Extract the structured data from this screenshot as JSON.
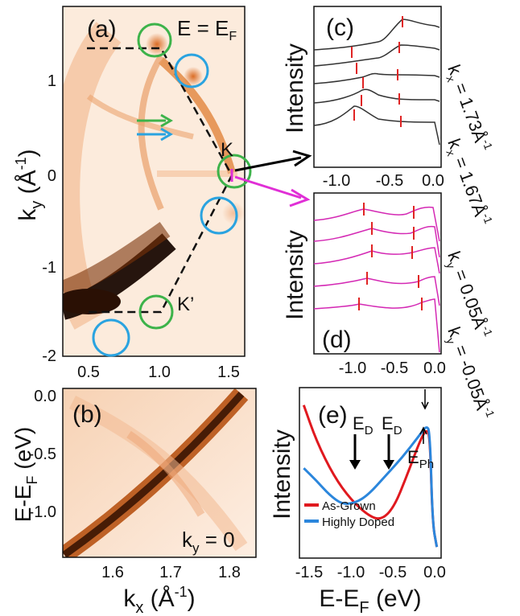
{
  "panel_a": {
    "label": "(a)",
    "energy_label": "E = E",
    "energy_sub": "F",
    "k_label": "K",
    "kprime_label": "K’",
    "xticks": [
      "0.5",
      "1.0",
      "1.5"
    ],
    "yticks": [
      "1",
      "0",
      "-1",
      "-2"
    ],
    "ylabel_main": "k",
    "ylabel_sub": "y",
    "ylabel_unit": " (Å",
    "ylabel_exp": "-1",
    "ylabel_close": ")"
  },
  "panel_b": {
    "label": "(b)",
    "ky_label": "k",
    "ky_sub": "y",
    "ky_value": " = 0",
    "xticks": [
      "1.6",
      "1.7",
      "1.8"
    ],
    "yticks": [
      "0.0",
      "-0.5",
      "-1.0"
    ],
    "xlabel_main": "k",
    "xlabel_sub": "x",
    "xlabel_unit": " (Å",
    "xlabel_exp": "-1",
    "xlabel_close": ")",
    "ylabel_main": "E-E",
    "ylabel_sub": "F",
    "ylabel_unit": " (eV)"
  },
  "panel_c": {
    "label": "(c)",
    "ylabel": "Intensity",
    "xticks": [
      "-1.0",
      "-0.5",
      "0.0"
    ],
    "kx_top": "k",
    "kx_top_sub": "x",
    "kx_top_value": " = 1.73Å",
    "kx_top_exp": "-1",
    "kx_bot": "k",
    "kx_bot_sub": "x",
    "kx_bot_value": " = 1.67Å",
    "kx_bot_exp": "-1"
  },
  "panel_d": {
    "label": "(d)",
    "ylabel": "Intensity",
    "xticks": [
      "-1.0",
      "-0.5",
      "0.0"
    ],
    "ky_top": "k",
    "ky_top_sub": "y",
    "ky_top_value": " = 0.05Å",
    "ky_top_exp": "-1",
    "ky_bot": "k",
    "ky_bot_sub": "y",
    "ky_bot_value": " = -0.05Å",
    "ky_bot_exp": "-1"
  },
  "panel_e": {
    "label": "(e)",
    "ylabel": "Intensity",
    "ed_label": "E",
    "ed_sub": "D",
    "eph_label": "E",
    "eph_sub": "Ph",
    "xticks": [
      "-1.5",
      "-1.0",
      "-0.5",
      "0.0"
    ],
    "xlabel_main": "E-E",
    "xlabel_sub": "F",
    "xlabel_unit": " (eV)",
    "legend": [
      {
        "name": "As-Grown",
        "color": "#e0191f"
      },
      {
        "name": "Highly Doped",
        "color": "#2b86dc"
      }
    ]
  },
  "colors": {
    "map_light": "#fbe9d9",
    "map_mid": "#e88a3a",
    "map_dark": "#1a0a02",
    "green_circle": "#3db34a",
    "blue_circle": "#2aa3e0",
    "gray_curve": "#333333",
    "pink_curve": "#d429b4",
    "tick_red": "#e02424",
    "arrow_black": "#000000",
    "arrow_magenta": "#e02fd6"
  },
  "chart_data": [
    {
      "type": "heatmap",
      "panel": "a",
      "x_range": [
        0.3,
        1.9
      ],
      "y_range": [
        -2.0,
        1.6
      ],
      "xticks": [
        0.5,
        1.0,
        1.5
      ],
      "yticks": [
        1,
        0,
        -1,
        -2
      ]
    },
    {
      "type": "heatmap",
      "panel": "b",
      "x_range": [
        1.55,
        1.83
      ],
      "y_range": [
        -1.45,
        0.05
      ],
      "xticks": [
        1.6,
        1.7,
        1.8
      ],
      "yticks": [
        0.0,
        -0.5,
        -1.0
      ]
    },
    {
      "type": "line",
      "panel": "e",
      "x_range": [
        -1.6,
        0.05
      ],
      "xticks": [
        -1.5,
        -1.0,
        -0.5,
        0.0
      ],
      "series": [
        {
          "name": "As-Grown",
          "x": [
            -1.55,
            -1.4,
            -1.2,
            -1.0,
            -0.8,
            -0.65,
            -0.5,
            -0.35,
            -0.2,
            -0.12,
            -0.08,
            -0.05,
            0.0
          ],
          "y": [
            0.95,
            0.72,
            0.5,
            0.35,
            0.25,
            0.22,
            0.3,
            0.5,
            0.72,
            0.8,
            0.75,
            0.2,
            0.05
          ]
        },
        {
          "name": "Highly Doped",
          "x": [
            -1.55,
            -1.4,
            -1.25,
            -1.1,
            -0.95,
            -0.8,
            -0.6,
            -0.4,
            -0.2,
            -0.12,
            -0.08,
            -0.05,
            0.0
          ],
          "y": [
            0.55,
            0.47,
            0.38,
            0.32,
            0.33,
            0.38,
            0.5,
            0.62,
            0.76,
            0.82,
            0.78,
            0.2,
            0.05
          ]
        }
      ]
    }
  ]
}
